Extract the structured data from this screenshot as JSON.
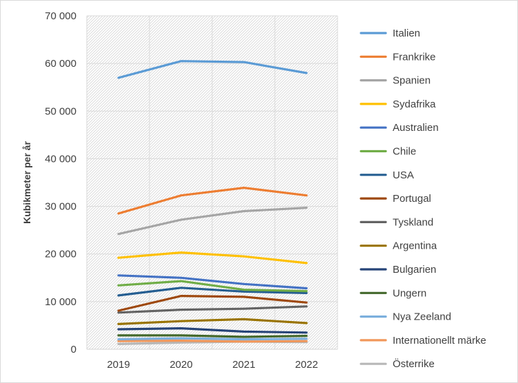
{
  "chart_data": {
    "type": "line",
    "title": "",
    "xlabel": "",
    "ylabel": "Kubikmeter per år",
    "ylim": [
      0,
      70000
    ],
    "y_ticks": [
      0,
      10000,
      20000,
      30000,
      40000,
      50000,
      60000,
      70000
    ],
    "y_tick_labels": [
      "0",
      "10 000",
      "20 000",
      "30 000",
      "40 000",
      "50 000",
      "60 000",
      "70 000"
    ],
    "x": [
      "2019",
      "2020",
      "2021",
      "2022"
    ],
    "grid": true,
    "legend_position": "right",
    "series": [
      {
        "name": "Italien",
        "color": "#5B9BD5",
        "values": [
          57000,
          60500,
          60300,
          58000
        ]
      },
      {
        "name": "Frankrike",
        "color": "#ED7D31",
        "values": [
          28500,
          32300,
          33900,
          32300
        ]
      },
      {
        "name": "Spanien",
        "color": "#A5A5A5",
        "values": [
          24200,
          27200,
          29000,
          29700
        ]
      },
      {
        "name": "Sydafrika",
        "color": "#FFC000",
        "values": [
          19200,
          20300,
          19500,
          18100
        ]
      },
      {
        "name": "Australien",
        "color": "#4472C4",
        "values": [
          15500,
          15000,
          13700,
          12800
        ]
      },
      {
        "name": "Chile",
        "color": "#70AD47",
        "values": [
          13400,
          14300,
          12500,
          12200
        ]
      },
      {
        "name": "USA",
        "color": "#255E91",
        "values": [
          11300,
          12900,
          12100,
          11800
        ]
      },
      {
        "name": "Portugal",
        "color": "#9E480E",
        "values": [
          8100,
          11200,
          11000,
          9800
        ]
      },
      {
        "name": "Tyskland",
        "color": "#636363",
        "values": [
          7700,
          8300,
          8500,
          9000
        ]
      },
      {
        "name": "Argentina",
        "color": "#997300",
        "values": [
          5300,
          5900,
          6300,
          5500
        ]
      },
      {
        "name": "Bulgarien",
        "color": "#264478",
        "values": [
          4200,
          4400,
          3700,
          3500
        ]
      },
      {
        "name": "Ungern",
        "color": "#43682B",
        "values": [
          2900,
          2900,
          2600,
          2800
        ]
      },
      {
        "name": "Nya Zeeland",
        "color": "#7CAFDD",
        "values": [
          2100,
          2300,
          2100,
          2200
        ]
      },
      {
        "name": "Internationellt märke",
        "color": "#F1975A",
        "values": [
          1700,
          1800,
          1600,
          1700
        ]
      },
      {
        "name": "Österrike",
        "color": "#B7B7B7",
        "values": [
          1100,
          1400,
          1600,
          1500
        ]
      }
    ]
  }
}
